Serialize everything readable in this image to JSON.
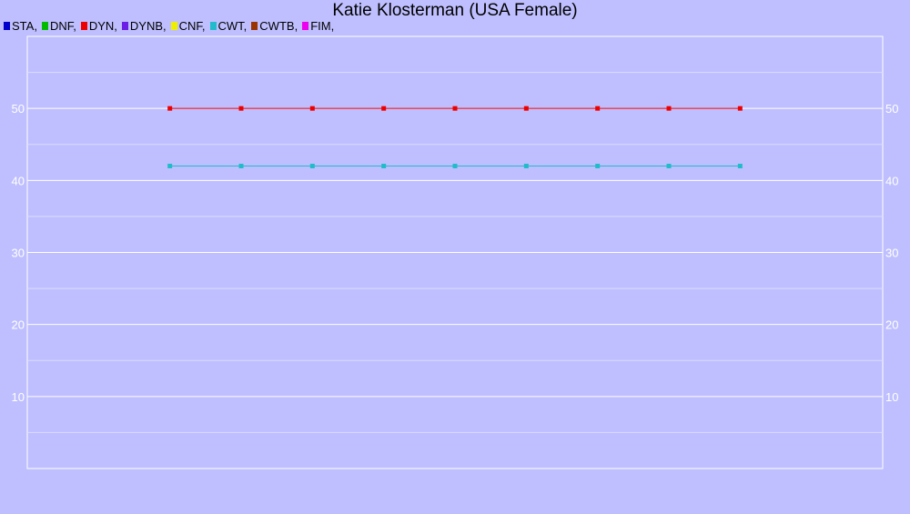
{
  "chart_data": {
    "type": "line",
    "title": "Katie Klosterman (USA Female)",
    "xlabel": "",
    "ylabel": "",
    "ylim": [
      0,
      60
    ],
    "yticks": [
      "10",
      "20",
      "30",
      "40",
      "50"
    ],
    "grid": true,
    "legend_placement": "top-left",
    "legend": [
      {
        "label": "STA,",
        "color": "#0000cc"
      },
      {
        "label": "DNF,",
        "color": "#00bb00"
      },
      {
        "label": "DYN,",
        "color": "#ee0000"
      },
      {
        "label": "DYNB,",
        "color": "#6a1ee6"
      },
      {
        "label": "CNF,",
        "color": "#eeee00"
      },
      {
        "label": "CWT,",
        "color": "#22bbcc"
      },
      {
        "label": "CWTB,",
        "color": "#993300"
      },
      {
        "label": "FIM,",
        "color": "#ee00ee"
      }
    ],
    "x": [
      1,
      2,
      3,
      4,
      5,
      6,
      7,
      8,
      9
    ],
    "xlim": [
      -1,
      11
    ],
    "series": [
      {
        "name": "DYN",
        "color": "#ee0000",
        "values": [
          50,
          50,
          50,
          50,
          50,
          50,
          50,
          50,
          50
        ]
      },
      {
        "name": "CWT",
        "color": "#22bbcc",
        "values": [
          42,
          42,
          42,
          42,
          42,
          42,
          42,
          42,
          42
        ]
      }
    ]
  }
}
